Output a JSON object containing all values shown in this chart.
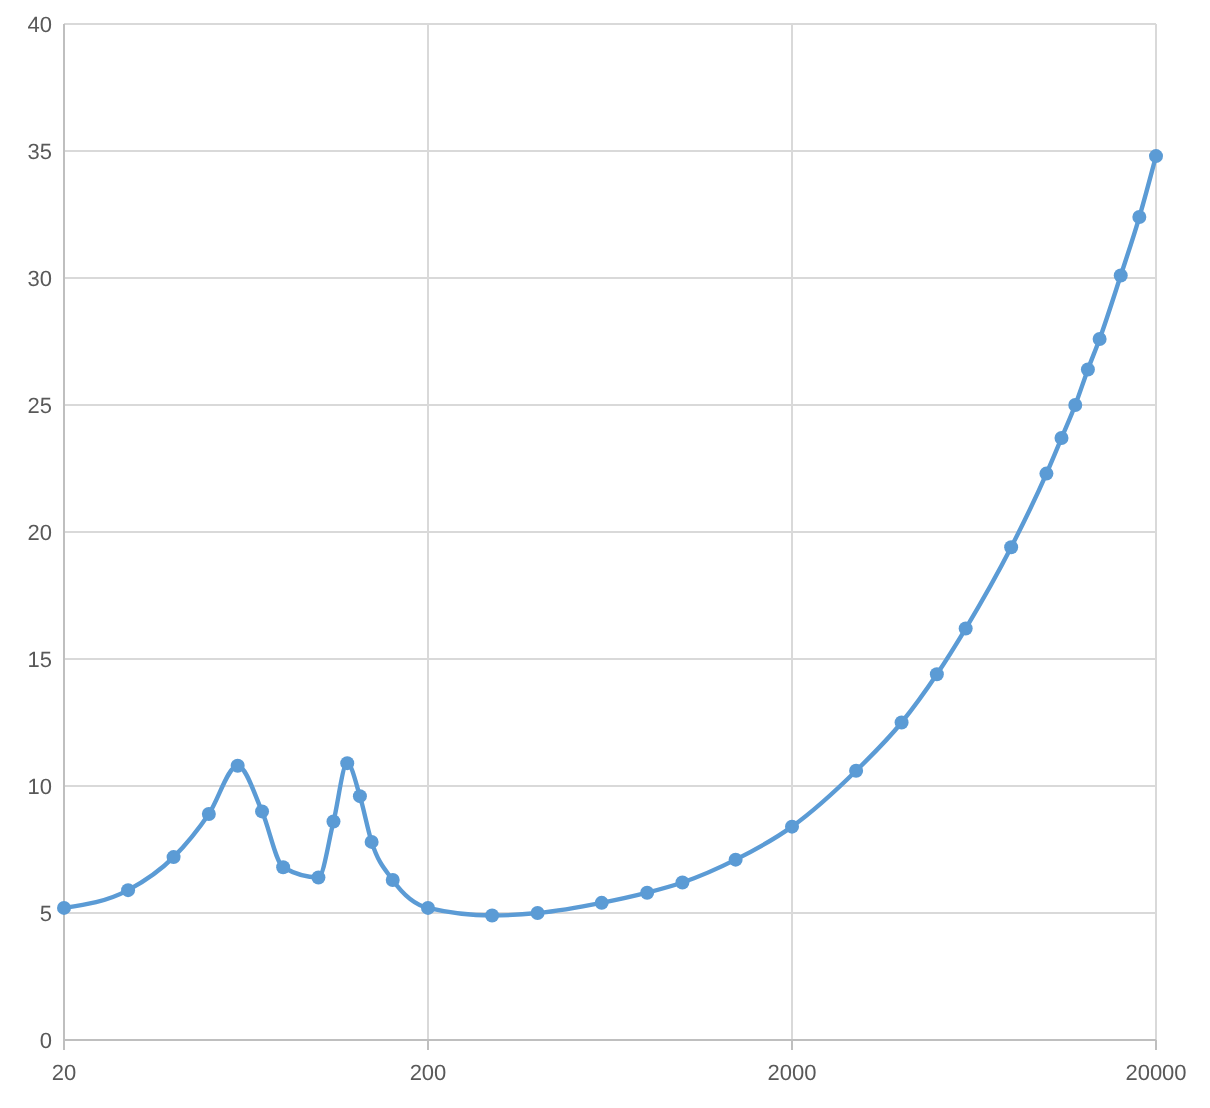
{
  "chart_data": {
    "type": "line",
    "log": "x",
    "grid": true,
    "marker": "circle",
    "line_style": "solid",
    "x": [
      20,
      30,
      40,
      50,
      60,
      70,
      80,
      100,
      110,
      120,
      130,
      140,
      160,
      200,
      300,
      400,
      600,
      800,
      1000,
      1400,
      2000,
      3000,
      4000,
      5000,
      6000,
      8000,
      10000,
      11000,
      12000,
      13000,
      14000,
      16000,
      18000,
      20000
    ],
    "series": [
      {
        "color": "#5b9bd5",
        "values": [
          5.2,
          5.9,
          7.2,
          8.9,
          10.8,
          9.0,
          6.8,
          6.4,
          8.6,
          10.9,
          9.6,
          7.8,
          6.3,
          5.2,
          4.9,
          5.0,
          5.4,
          5.8,
          6.2,
          7.1,
          8.4,
          10.6,
          12.5,
          14.4,
          16.2,
          19.4,
          22.3,
          23.7,
          25.0,
          26.4,
          27.6,
          30.1,
          32.4,
          34.8
        ]
      }
    ],
    "xlim": [
      20,
      20000
    ],
    "xticks": [
      20,
      200,
      2000,
      20000
    ],
    "ylim": [
      0,
      40
    ],
    "yticks": [
      0,
      5,
      10,
      15,
      20,
      25,
      30,
      35,
      40
    ]
  }
}
